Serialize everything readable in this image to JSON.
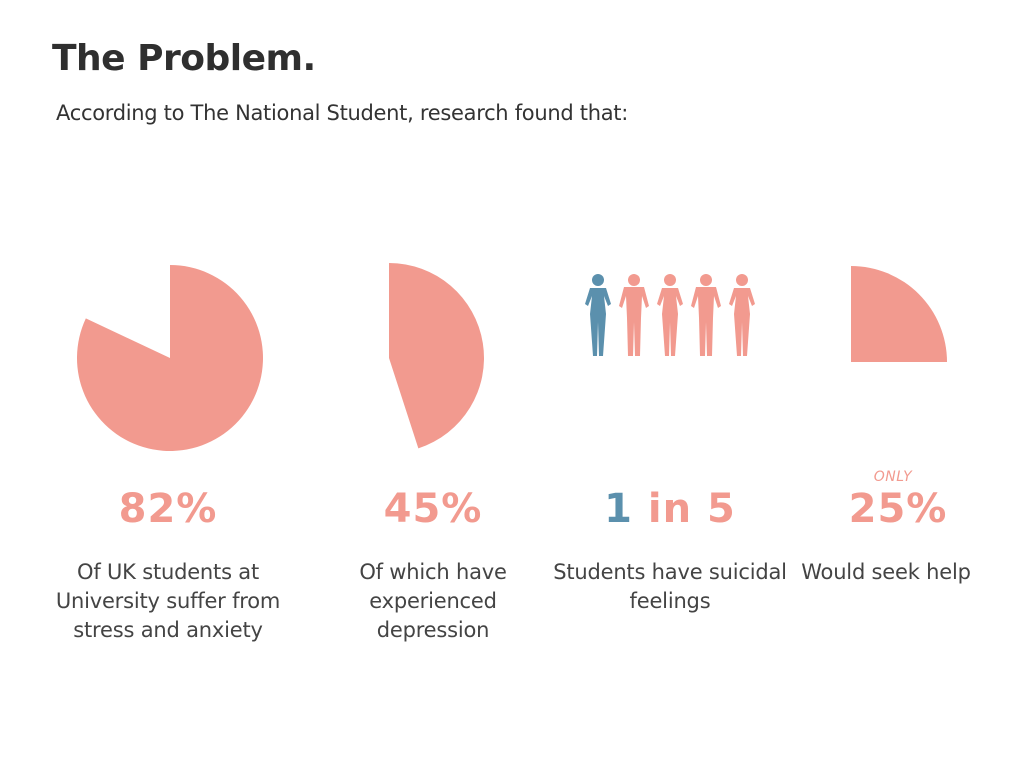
{
  "page": {
    "title": "The Problem.",
    "subtitle": "According to The National Student, research found that:"
  },
  "colors": {
    "accent": "#f29a8f",
    "blue": "#5b90ad",
    "text": "#444444"
  },
  "chart_data": [
    {
      "type": "pie",
      "values": [
        82,
        18
      ],
      "label": "82%",
      "description": "Of UK students at University suffer from stress and anxiety"
    },
    {
      "type": "pie",
      "values": [
        45,
        55
      ],
      "label": "45%",
      "description": "Of which have experienced depression"
    },
    {
      "type": "pictogram",
      "highlighted": 1,
      "total": 5,
      "label_num_a": "1",
      "label_in": "in",
      "label_num_b": "5",
      "description": "Students have suicidal feelings"
    },
    {
      "type": "pie",
      "values": [
        25,
        75
      ],
      "qualifier": "ONLY",
      "label": "25%",
      "description": "Would seek help"
    }
  ]
}
